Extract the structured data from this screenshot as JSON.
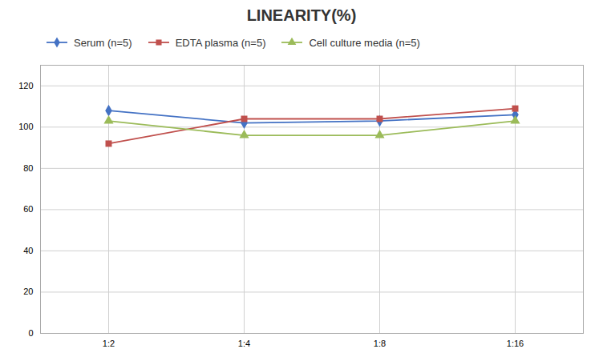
{
  "chart_data": {
    "type": "line",
    "title": "LINEARITY(%)",
    "categories": [
      "1:2",
      "1:4",
      "1:8",
      "1:16"
    ],
    "series": [
      {
        "name": "Serum (n=5)",
        "color": "#4472C4",
        "marker": "diamond",
        "values": [
          108,
          102,
          103,
          106
        ]
      },
      {
        "name": "EDTA plasma (n=5)",
        "color": "#C0504D",
        "marker": "square",
        "values": [
          92,
          104,
          104,
          109
        ]
      },
      {
        "name": "Cell culture media (n=5)",
        "color": "#9BBB59",
        "marker": "triangle",
        "values": [
          103,
          96,
          96,
          103
        ]
      }
    ],
    "ylim": [
      0,
      130
    ],
    "yticks": [
      0,
      20,
      40,
      60,
      80,
      100,
      120
    ],
    "grid": true,
    "legend": "top-left"
  }
}
